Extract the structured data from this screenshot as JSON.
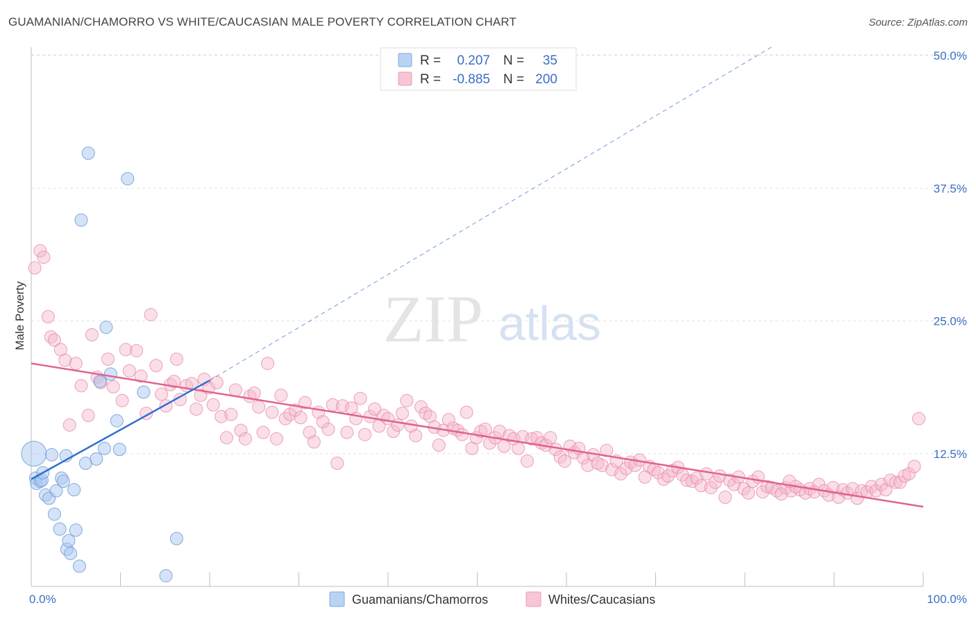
{
  "title": "GUAMANIAN/CHAMORRO VS WHITE/CAUCASIAN MALE POVERTY CORRELATION CHART",
  "source": "Source: ZipAtlas.com",
  "watermark": {
    "zip": "ZIP",
    "atlas": "atlas"
  },
  "colors": {
    "blue_fill": "#a9c8f0",
    "blue_stroke": "#6f9bd8",
    "blue_line": "#2f6fcf",
    "pink_fill": "#f5b7ca",
    "pink_stroke": "#e98aaa",
    "pink_line": "#e0628e",
    "tick_text": "#3a6fc4"
  },
  "legend": {
    "rows": [
      {
        "r_label": "R =",
        "r_value": "0.207",
        "n_label": "N =",
        "n_value": "35"
      },
      {
        "r_label": "R =",
        "r_value": "-0.885",
        "n_label": "N =",
        "n_value": "200"
      }
    ]
  },
  "chart_data": {
    "type": "scatter",
    "title": "GUAMANIAN/CHAMORRO VS WHITE/CAUCASIAN MALE POVERTY CORRELATION CHART",
    "xlabel": "",
    "ylabel": "Male Poverty",
    "xlim": [
      0,
      100
    ],
    "ylim": [
      0,
      52
    ],
    "x_tick_labels": [
      "0.0%",
      "100.0%"
    ],
    "y_ticks": [
      12.5,
      25.0,
      37.5,
      50.0
    ],
    "y_tick_labels": [
      "12.5%",
      "25.0%",
      "37.5%",
      "50.0%"
    ],
    "grid": true,
    "legend_position": "top-center",
    "series": [
      {
        "name": "Guamanians/Chamorros",
        "r": 0.207,
        "n": 35,
        "trend": {
          "x": [
            0,
            20
          ],
          "y": [
            10.1,
            19.4
          ]
        },
        "trend_extension": {
          "x": [
            20,
            83
          ],
          "y": [
            19.4,
            50.8
          ]
        },
        "points": [
          [
            0.3,
            12.5,
            18
          ],
          [
            0.5,
            10.2,
            9
          ],
          [
            0.6,
            9.7,
            9
          ],
          [
            1.0,
            9.9,
            9
          ],
          [
            1.2,
            10.0,
            9
          ],
          [
            1.3,
            10.7,
            9
          ],
          [
            1.6,
            8.6,
            9
          ],
          [
            2.0,
            8.3,
            9
          ],
          [
            2.3,
            12.4,
            9
          ],
          [
            2.6,
            6.8,
            9
          ],
          [
            2.8,
            9.0,
            9
          ],
          [
            3.2,
            5.4,
            9
          ],
          [
            3.4,
            10.2,
            9
          ],
          [
            3.6,
            9.9,
            9
          ],
          [
            3.9,
            12.3,
            9
          ],
          [
            4.0,
            3.5,
            9
          ],
          [
            4.2,
            4.3,
            9
          ],
          [
            4.4,
            3.1,
            9
          ],
          [
            4.8,
            9.1,
            9
          ],
          [
            5.0,
            5.3,
            9
          ],
          [
            5.4,
            1.9,
            9
          ],
          [
            5.6,
            34.5,
            9
          ],
          [
            6.1,
            11.6,
            9
          ],
          [
            6.4,
            40.8,
            9
          ],
          [
            7.3,
            12.0,
            9
          ],
          [
            7.7,
            19.3,
            9
          ],
          [
            8.2,
            13.0,
            9
          ],
          [
            8.4,
            24.4,
            9
          ],
          [
            8.9,
            20.0,
            9
          ],
          [
            9.6,
            15.6,
            9
          ],
          [
            9.9,
            12.9,
            9
          ],
          [
            10.8,
            38.4,
            9
          ],
          [
            12.6,
            18.3,
            9
          ],
          [
            15.1,
            1.0,
            9
          ],
          [
            16.3,
            4.5,
            9
          ]
        ]
      },
      {
        "name": "Whites/Caucasians",
        "r": -0.885,
        "n": 200,
        "trend": {
          "x": [
            0,
            100
          ],
          "y": [
            21.0,
            7.5
          ]
        },
        "points": [
          [
            0.4,
            30.0
          ],
          [
            1.0,
            31.6
          ],
          [
            1.4,
            31.0
          ],
          [
            1.9,
            25.4
          ],
          [
            2.2,
            23.5
          ],
          [
            2.6,
            23.2
          ],
          [
            3.3,
            22.3
          ],
          [
            3.8,
            21.3
          ],
          [
            4.3,
            15.2
          ],
          [
            5.0,
            21.0
          ],
          [
            5.6,
            18.9
          ],
          [
            6.4,
            16.1
          ],
          [
            6.8,
            23.7
          ],
          [
            7.4,
            19.7
          ],
          [
            7.8,
            19.2
          ],
          [
            8.6,
            21.4
          ],
          [
            9.2,
            18.8
          ],
          [
            10.2,
            17.5
          ],
          [
            10.6,
            22.3
          ],
          [
            11.0,
            20.3
          ],
          [
            11.8,
            22.2
          ],
          [
            12.3,
            19.8
          ],
          [
            12.9,
            16.3
          ],
          [
            13.4,
            25.6
          ],
          [
            14.0,
            20.8
          ],
          [
            14.6,
            18.1
          ],
          [
            15.1,
            17.0
          ],
          [
            15.6,
            19.0
          ],
          [
            16.0,
            19.3
          ],
          [
            16.3,
            21.4
          ],
          [
            16.7,
            17.6
          ],
          [
            17.4,
            18.9
          ],
          [
            18.0,
            19.1
          ],
          [
            18.5,
            16.7
          ],
          [
            19.0,
            18.0
          ],
          [
            19.4,
            19.5
          ],
          [
            19.9,
            18.7
          ],
          [
            20.4,
            17.1
          ],
          [
            20.8,
            19.2
          ],
          [
            21.3,
            16.0
          ],
          [
            21.9,
            14.0
          ],
          [
            22.4,
            16.2
          ],
          [
            22.9,
            18.5
          ],
          [
            23.5,
            14.7
          ],
          [
            24.0,
            13.9
          ],
          [
            24.5,
            17.9
          ],
          [
            25.0,
            18.2
          ],
          [
            25.5,
            16.9
          ],
          [
            26.0,
            14.5
          ],
          [
            26.5,
            21.0
          ],
          [
            27.0,
            16.4
          ],
          [
            27.5,
            13.9
          ],
          [
            28.0,
            18.0
          ],
          [
            28.5,
            15.8
          ],
          [
            29.0,
            16.2
          ],
          [
            29.6,
            16.6
          ],
          [
            30.2,
            15.9
          ],
          [
            30.7,
            17.3
          ],
          [
            31.2,
            14.5
          ],
          [
            31.7,
            13.6
          ],
          [
            32.2,
            16.4
          ],
          [
            32.7,
            15.5
          ],
          [
            33.3,
            14.8
          ],
          [
            33.8,
            17.1
          ],
          [
            34.3,
            11.6
          ],
          [
            34.9,
            17.0
          ],
          [
            35.4,
            14.5
          ],
          [
            35.9,
            16.8
          ],
          [
            36.4,
            15.8
          ],
          [
            36.9,
            17.7
          ],
          [
            37.4,
            14.3
          ],
          [
            38.0,
            16.0
          ],
          [
            38.5,
            16.7
          ],
          [
            39.0,
            15.1
          ],
          [
            39.5,
            16.1
          ],
          [
            40.0,
            15.8
          ],
          [
            40.6,
            14.6
          ],
          [
            41.1,
            15.2
          ],
          [
            41.6,
            16.3
          ],
          [
            42.1,
            17.5
          ],
          [
            42.6,
            15.1
          ],
          [
            43.1,
            14.2
          ],
          [
            43.7,
            16.9
          ],
          [
            44.2,
            16.3
          ],
          [
            44.7,
            16.0
          ],
          [
            45.2,
            15.0
          ],
          [
            45.7,
            13.3
          ],
          [
            46.2,
            14.7
          ],
          [
            46.8,
            15.7
          ],
          [
            47.3,
            14.9
          ],
          [
            47.8,
            14.7
          ],
          [
            48.3,
            14.3
          ],
          [
            48.8,
            16.4
          ],
          [
            49.4,
            13.0
          ],
          [
            49.9,
            14.0
          ],
          [
            50.4,
            14.6
          ],
          [
            50.9,
            14.8
          ],
          [
            51.4,
            13.5
          ],
          [
            52.0,
            14.0
          ],
          [
            52.5,
            14.6
          ],
          [
            53.0,
            13.2
          ],
          [
            53.6,
            14.2
          ],
          [
            54.1,
            13.9
          ],
          [
            54.6,
            13.0
          ],
          [
            55.1,
            14.1
          ],
          [
            55.6,
            11.8
          ],
          [
            56.1,
            13.9
          ],
          [
            56.7,
            14.0
          ],
          [
            57.2,
            13.5
          ],
          [
            57.7,
            13.3
          ],
          [
            58.2,
            14.0
          ],
          [
            58.8,
            12.9
          ],
          [
            59.3,
            12.2
          ],
          [
            59.8,
            11.8
          ],
          [
            60.4,
            13.2
          ],
          [
            60.9,
            12.6
          ],
          [
            61.4,
            13.0
          ],
          [
            61.9,
            12.1
          ],
          [
            62.4,
            11.4
          ],
          [
            63.0,
            12.4
          ],
          [
            63.5,
            11.6
          ],
          [
            64.0,
            11.4
          ],
          [
            64.5,
            12.8
          ],
          [
            65.1,
            11.0
          ],
          [
            65.6,
            11.8
          ],
          [
            66.1,
            10.6
          ],
          [
            66.7,
            11.1
          ],
          [
            67.2,
            11.7
          ],
          [
            67.7,
            11.4
          ],
          [
            68.2,
            11.9
          ],
          [
            68.8,
            10.3
          ],
          [
            69.3,
            11.3
          ],
          [
            69.8,
            11.0
          ],
          [
            70.3,
            10.7
          ],
          [
            70.9,
            10.1
          ],
          [
            71.4,
            10.4
          ],
          [
            71.9,
            10.9
          ],
          [
            72.5,
            11.2
          ],
          [
            73.0,
            10.5
          ],
          [
            73.5,
            10.0
          ],
          [
            74.1,
            9.9
          ],
          [
            74.6,
            10.2
          ],
          [
            75.1,
            9.5
          ],
          [
            75.7,
            10.6
          ],
          [
            76.2,
            9.3
          ],
          [
            76.7,
            9.8
          ],
          [
            77.2,
            10.4
          ],
          [
            77.8,
            8.4
          ],
          [
            78.3,
            10.0
          ],
          [
            78.8,
            9.6
          ],
          [
            79.3,
            10.3
          ],
          [
            79.9,
            9.2
          ],
          [
            80.4,
            8.8
          ],
          [
            80.9,
            9.9
          ],
          [
            81.5,
            10.3
          ],
          [
            82.0,
            8.9
          ],
          [
            82.5,
            9.4
          ],
          [
            83.0,
            9.3
          ],
          [
            83.6,
            9.0
          ],
          [
            84.1,
            8.7
          ],
          [
            84.6,
            9.3
          ],
          [
            85.2,
            9.0
          ],
          [
            85.7,
            9.4
          ],
          [
            86.2,
            9.1
          ],
          [
            86.8,
            8.8
          ],
          [
            87.3,
            9.2
          ],
          [
            87.8,
            8.9
          ],
          [
            88.3,
            9.6
          ],
          [
            88.9,
            9.0
          ],
          [
            89.4,
            8.6
          ],
          [
            89.9,
            9.3
          ],
          [
            90.5,
            8.4
          ],
          [
            91.0,
            9.1
          ],
          [
            91.5,
            8.8
          ],
          [
            92.1,
            9.2
          ],
          [
            92.6,
            8.3
          ],
          [
            93.1,
            9.0
          ],
          [
            93.7,
            8.9
          ],
          [
            94.2,
            9.4
          ],
          [
            94.7,
            9.0
          ],
          [
            95.3,
            9.6
          ],
          [
            95.8,
            9.1
          ],
          [
            96.3,
            10.0
          ],
          [
            96.9,
            9.8
          ],
          [
            97.4,
            9.8
          ],
          [
            97.9,
            10.4
          ],
          [
            98.4,
            10.6
          ],
          [
            99.0,
            11.3
          ],
          [
            99.5,
            15.8
          ],
          [
            85.0,
            9.9
          ]
        ]
      }
    ]
  }
}
